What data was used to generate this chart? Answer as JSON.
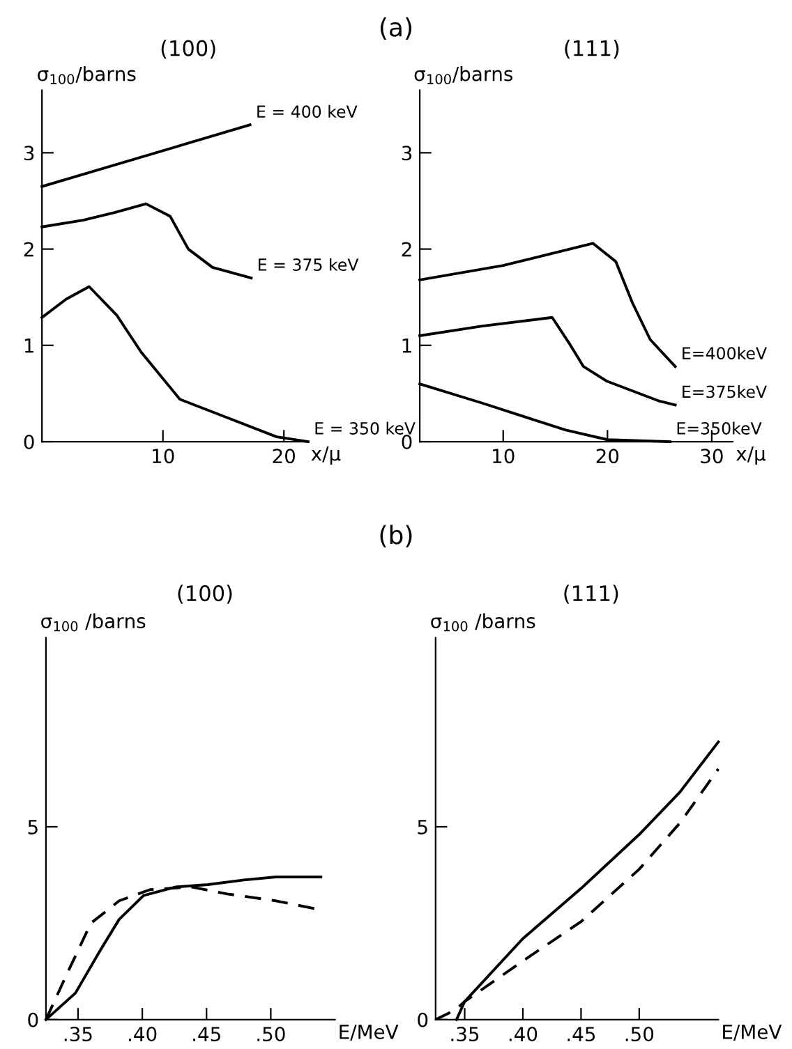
{
  "chart_data": [
    {
      "type": "line",
      "title": "(100)",
      "ylabel": "σ$_{100}$/barns",
      "xlabel": "x/μ",
      "annotations": [
        "(a)"
      ],
      "xlim": [
        0,
        22
      ],
      "ylim": [
        0,
        3.65
      ],
      "xticks": [
        10,
        20
      ],
      "yticks": [
        0,
        1,
        2,
        3
      ],
      "series": [
        {
          "name": "E = 400 keV",
          "color": "#000000",
          "line_style": "solid",
          "x": [
            0,
            17.2
          ],
          "values": [
            2.65,
            3.29
          ]
        },
        {
          "name": "E = 375 keV",
          "color": "#000000",
          "line_style": "solid",
          "x": [
            0,
            3.4,
            6,
            8.6,
            10.6,
            12.1,
            14.1,
            17.3
          ],
          "values": [
            2.23,
            2.3,
            2.38,
            2.47,
            2.34,
            2.0,
            1.81,
            1.7
          ]
        },
        {
          "name": "E = 350 keV",
          "color": "#000000",
          "line_style": "solid",
          "x": [
            0,
            2,
            3.9,
            6.2,
            8.2,
            11.4,
            15.3,
            19.4,
            22
          ],
          "values": [
            1.29,
            1.48,
            1.61,
            1.31,
            0.93,
            0.44,
            0.25,
            0.05,
            0
          ]
        }
      ]
    },
    {
      "type": "line",
      "title": "(111)",
      "ylabel": "σ$_{100}$/barns",
      "xlabel": "x/μ",
      "xlim": [
        2,
        32
      ],
      "ylim": [
        0,
        3.65
      ],
      "xticks": [
        10,
        20,
        30
      ],
      "yticks": [
        0,
        1,
        2,
        3
      ],
      "series": [
        {
          "name": "E=400keV",
          "color": "#000000",
          "line_style": "solid",
          "x": [
            2,
            10,
            18.6,
            20.8,
            22.4,
            24.1,
            26.5
          ],
          "values": [
            1.68,
            1.83,
            2.06,
            1.87,
            1.44,
            1.06,
            0.78
          ]
        },
        {
          "name": "E=375keV",
          "color": "#000000",
          "line_style": "solid",
          "x": [
            2,
            8,
            14.7,
            16.4,
            17.7,
            19.9,
            25,
            26.5
          ],
          "values": [
            1.1,
            1.2,
            1.29,
            1.01,
            0.78,
            0.63,
            0.42,
            0.38
          ]
        },
        {
          "name": "E=350keV",
          "color": "#000000",
          "line_style": "solid",
          "x": [
            2,
            8,
            12,
            16,
            20,
            26
          ],
          "values": [
            0.6,
            0.4,
            0.26,
            0.12,
            0.02,
            0
          ]
        }
      ]
    },
    {
      "type": "line",
      "title": "(100)",
      "ylabel": "σ$_{100}$ /barns",
      "xlabel": "E/MeV",
      "annotations": [
        "(b)"
      ],
      "xlim": [
        0.325,
        0.55
      ],
      "ylim": [
        0,
        9.9
      ],
      "xticks": [
        {
          "value": 0.35,
          "label": ".35"
        },
        {
          "value": 0.4,
          "label": ".40"
        },
        {
          "value": 0.45,
          "label": ".45"
        },
        {
          "value": 0.5,
          "label": ".50"
        }
      ],
      "yticks": [
        0,
        5
      ],
      "series": [
        {
          "color": "#000000",
          "line_style": "solid",
          "x": [
            0.325,
            0.348,
            0.367,
            0.382,
            0.401,
            0.426,
            0.451,
            0.479,
            0.504,
            0.539
          ],
          "values": [
            0,
            0.69,
            1.78,
            2.6,
            3.22,
            3.44,
            3.5,
            3.62,
            3.7,
            3.7
          ]
        },
        {
          "color": "#000000",
          "line_style": "dashed",
          "x": [
            0.325,
            0.341,
            0.36,
            0.382,
            0.406,
            0.438,
            0.466,
            0.504,
            0.537
          ],
          "values": [
            0,
            1.16,
            2.5,
            3.08,
            3.37,
            3.44,
            3.26,
            3.08,
            2.86
          ]
        }
      ]
    },
    {
      "type": "line",
      "title": "(111)",
      "ylabel": "σ$_{100}$ /barns",
      "xlabel": "E/MeV",
      "xlim": [
        0.325,
        0.568
      ],
      "ylim": [
        0,
        9.9
      ],
      "xticks": [
        {
          "value": 0.35,
          "label": ".35"
        },
        {
          "value": 0.4,
          "label": ".40"
        },
        {
          "value": 0.45,
          "label": ".45"
        },
        {
          "value": 0.5,
          "label": ".50"
        }
      ],
      "yticks": [
        0,
        5
      ],
      "series": [
        {
          "color": "#000000",
          "line_style": "solid",
          "x": [
            0.343,
            0.35,
            0.4,
            0.45,
            0.5,
            0.535,
            0.568
          ],
          "values": [
            0,
            0.47,
            2.1,
            3.4,
            4.8,
            5.9,
            7.2
          ]
        },
        {
          "color": "#000000",
          "line_style": "dashed",
          "x": [
            0.325,
            0.342,
            0.35,
            0.4,
            0.45,
            0.5,
            0.535,
            0.568
          ],
          "values": [
            0,
            0.25,
            0.47,
            1.52,
            2.54,
            3.9,
            5.1,
            6.5
          ]
        }
      ]
    }
  ]
}
